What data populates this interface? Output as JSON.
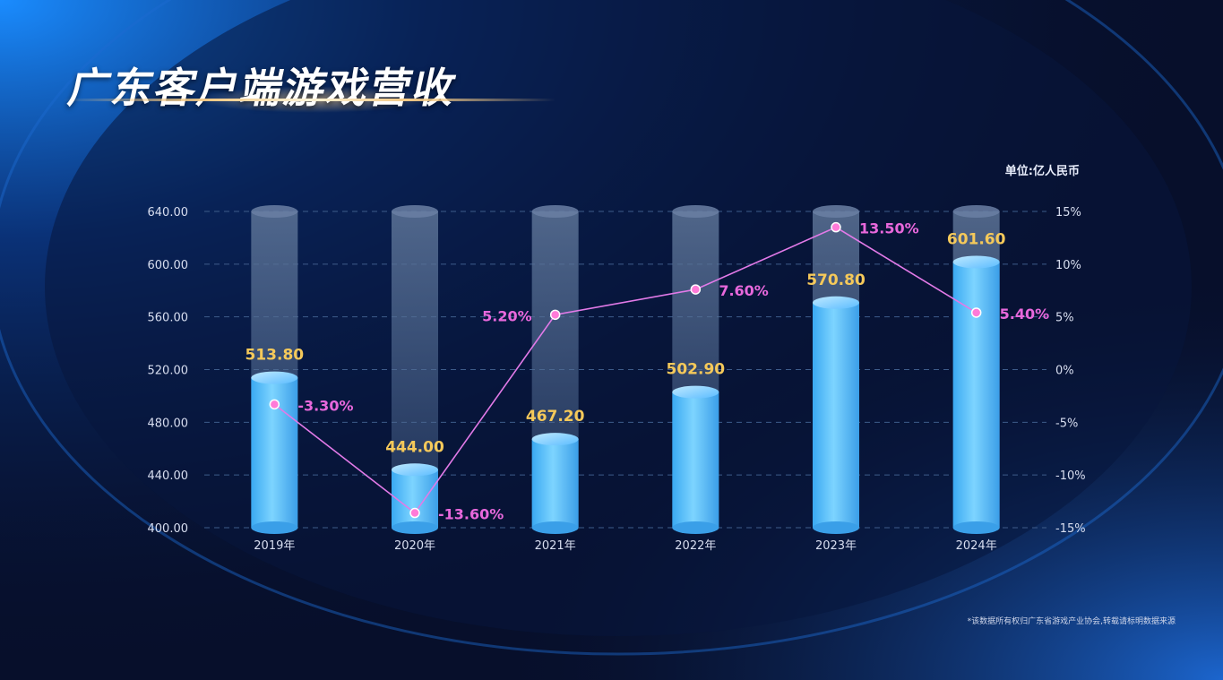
{
  "title": "广东客户端游戏营收",
  "unit": "单位:亿人民币",
  "footnote": "*该数据所有权归广东省游戏产业协会,转载请标明数据来源",
  "colors": {
    "bar": "#66c6ff",
    "bar_top": "#9fdcff",
    "line": "#e27ae8",
    "marker": "#ff7ad8",
    "value_label": "#f5c95a",
    "pct_label": "#e868dc",
    "axis_text": "#d8def0",
    "grid": "#3e5c8a"
  },
  "chart_data": {
    "type": "bar",
    "categories": [
      "2019年",
      "2020年",
      "2021年",
      "2022年",
      "2023年",
      "2024年"
    ],
    "series": [
      {
        "type": "bar",
        "axis": "left",
        "values": [
          513.8,
          444.0,
          467.2,
          502.9,
          570.8,
          601.6
        ],
        "labels": [
          "513.80",
          "444.00",
          "467.20",
          "502.90",
          "570.80",
          "601.60"
        ]
      },
      {
        "type": "line",
        "axis": "right",
        "values": [
          -3.3,
          -13.6,
          5.2,
          7.6,
          13.5,
          5.4
        ],
        "labels": [
          "-3.30%",
          "-13.60%",
          "5.20%",
          "7.60%",
          "13.50%",
          "5.40%"
        ]
      }
    ],
    "y_left": {
      "ylim": [
        400,
        640
      ],
      "ticks": [
        "400.00",
        "440.00",
        "480.00",
        "520.00",
        "560.00",
        "600.00",
        "640.00"
      ]
    },
    "y_right": {
      "ylim": [
        -15,
        15
      ],
      "ticks": [
        "-15%",
        "-10%",
        "-5%",
        "0%",
        "5%",
        "10%",
        "15%"
      ]
    },
    "grid": true,
    "legend": false
  }
}
